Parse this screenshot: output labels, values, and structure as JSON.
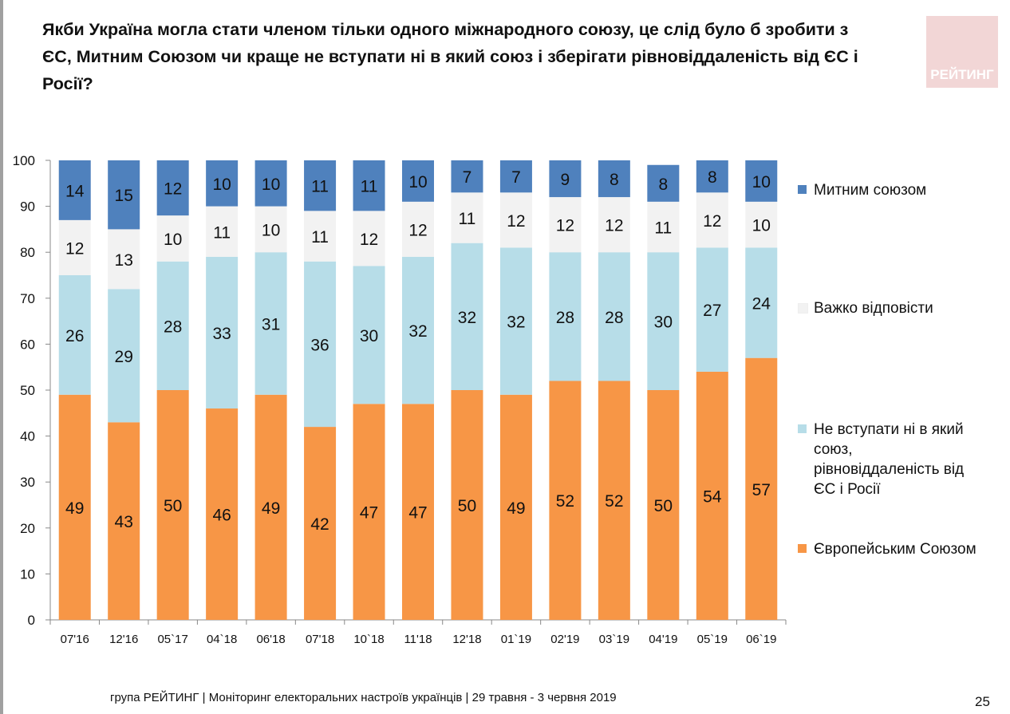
{
  "title": "Якби Україна могла стати членом тільки одного міжнародного союзу, це слід було б зробити з ЄС, Митним Союзом чи краще не вступати ні в який союз і зберігати рівновіддаленість від ЄС і Росії?",
  "logo_text": "РЕЙТИНГ",
  "footer": "група РЕЙТИНГ | Моніторинг електоральних настроїв українців  | 29 травня - 3 червня 2019",
  "page_number": "25",
  "chart_data": {
    "type": "bar",
    "stacked": true,
    "categories": [
      "07'16",
      "12'16",
      "05`17",
      "04`18",
      "06'18",
      "07'18",
      "10`18",
      "11'18",
      "12'18",
      "01`19",
      "02'19",
      "03`19",
      "04'19",
      "05`19",
      "06`19"
    ],
    "ylim": [
      0,
      100
    ],
    "yticks": [
      "0",
      "10",
      "20",
      "30",
      "40",
      "50",
      "60",
      "70",
      "80",
      "90",
      "100"
    ],
    "grid": false,
    "legend_placement": "right",
    "series": [
      {
        "name": "Європейським Союзом",
        "color": "#f79646",
        "values": [
          49,
          43,
          50,
          46,
          49,
          42,
          47,
          47,
          50,
          49,
          52,
          52,
          50,
          54,
          57
        ]
      },
      {
        "name": "Не вступати ні в який союз, рівновіддаленість від ЄС і Росії",
        "color": "#b7dde8",
        "values": [
          26,
          29,
          28,
          33,
          31,
          36,
          30,
          32,
          32,
          32,
          28,
          28,
          30,
          27,
          24
        ]
      },
      {
        "name": "Важко відповісти",
        "color": "#f2f2f2",
        "values": [
          12,
          13,
          10,
          11,
          10,
          11,
          12,
          12,
          11,
          12,
          12,
          12,
          11,
          12,
          10
        ]
      },
      {
        "name": "Митним союзом",
        "color": "#4f81bd",
        "values": [
          14,
          15,
          12,
          10,
          10,
          11,
          11,
          10,
          7,
          7,
          9,
          8,
          8,
          8,
          10
        ]
      }
    ]
  }
}
